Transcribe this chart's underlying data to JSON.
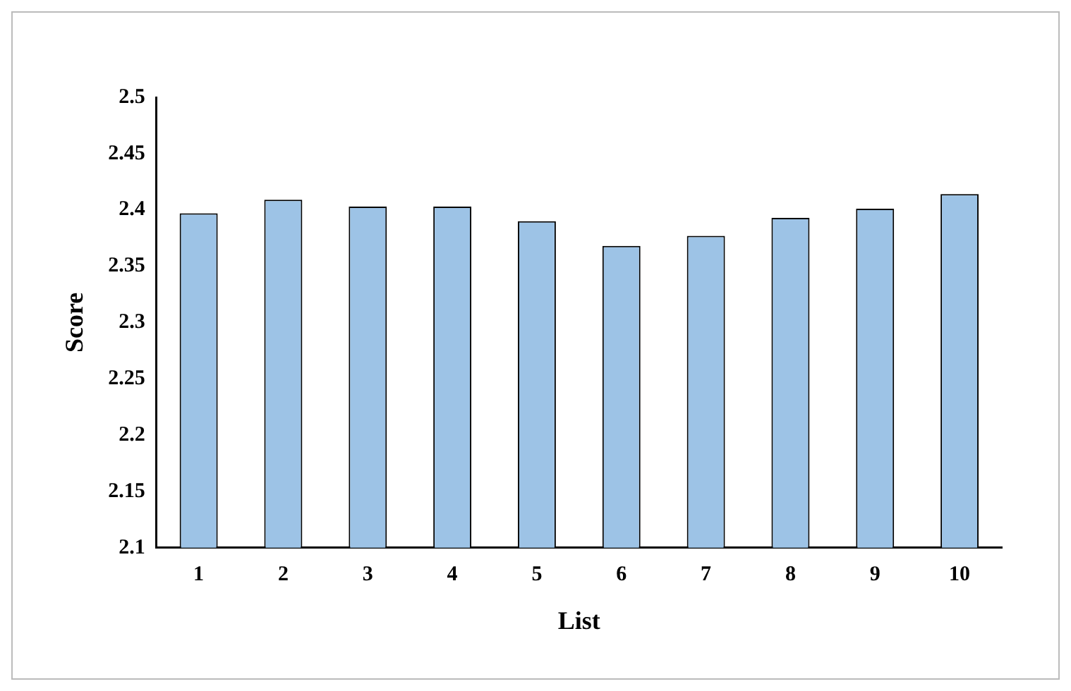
{
  "chart_data": {
    "type": "bar",
    "xlabel": "List",
    "ylabel": "Score",
    "categories": [
      "1",
      "2",
      "3",
      "4",
      "5",
      "6",
      "7",
      "8",
      "9",
      "10"
    ],
    "values": [
      2.397,
      2.409,
      2.403,
      2.403,
      2.39,
      2.368,
      2.377,
      2.393,
      2.401,
      2.414
    ],
    "color": "#9dc3e6",
    "ylim": [
      2.1,
      2.5
    ],
    "yticks": [
      2.1,
      2.15,
      2.2,
      2.25,
      2.3,
      2.35,
      2.4,
      2.45,
      2.5
    ],
    "grid": false,
    "legend": false
  }
}
